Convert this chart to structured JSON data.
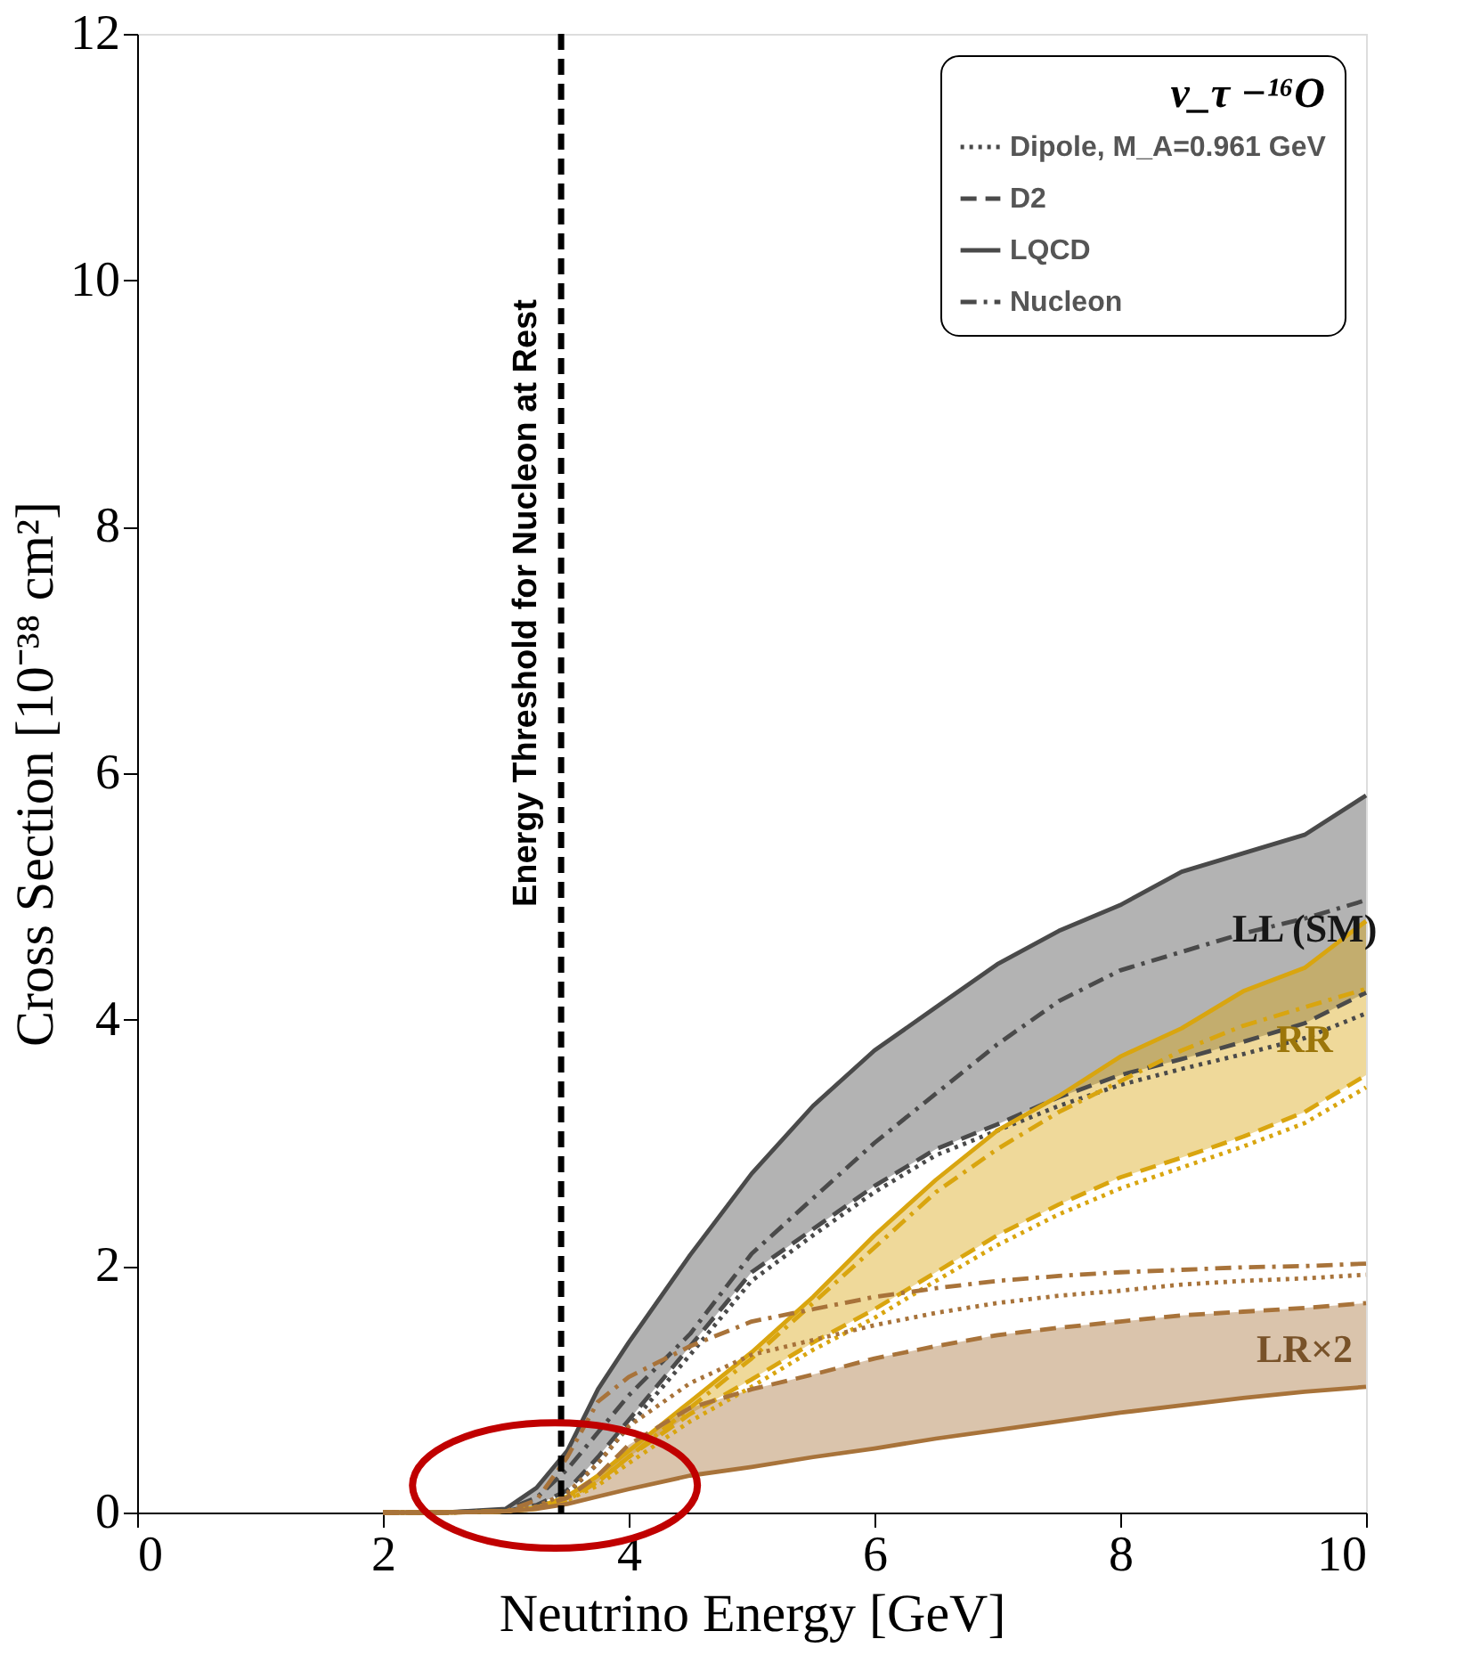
{
  "chart_data": {
    "type": "line",
    "xlabel": "Neutrino Energy [GeV]",
    "ylabel": "Cross Section  [10⁻³⁸ cm²]",
    "legend_title": "ν_τ −¹⁶O",
    "legend": "top right",
    "grid": false,
    "xlim": [
      0,
      10
    ],
    "ylim": [
      0,
      12
    ],
    "xticks": [
      0,
      2,
      4,
      6,
      8,
      10
    ],
    "yticks": [
      0,
      2,
      4,
      6,
      8,
      10,
      12
    ],
    "x": [
      2,
      2.5,
      3,
      3.25,
      3.5,
      3.75,
      4,
      4.5,
      5,
      5.5,
      6,
      6.5,
      7,
      7.5,
      8,
      8.5,
      9,
      9.5,
      10
    ],
    "series": [
      {
        "name": "Dipole, M_A=0.961 GeV",
        "color": "#4a4a4a",
        "line_style": "dotted",
        "values": [
          0,
          0,
          0.01,
          0.05,
          0.15,
          0.4,
          0.7,
          1.28,
          1.88,
          2.25,
          2.6,
          2.9,
          3.1,
          3.3,
          3.47,
          3.6,
          3.72,
          3.85,
          4.05
        ]
      },
      {
        "name": "D2",
        "color": "#4a4a4a",
        "line_style": "dashed",
        "values": [
          0,
          0,
          0.01,
          0.06,
          0.18,
          0.45,
          0.75,
          1.35,
          1.95,
          2.3,
          2.65,
          2.95,
          3.15,
          3.37,
          3.55,
          3.68,
          3.82,
          3.97,
          4.22
        ]
      },
      {
        "name": "LQCD",
        "color": "#4a4a4a",
        "line_style": "solid",
        "values": [
          0,
          0,
          0.03,
          0.2,
          0.5,
          1.0,
          1.38,
          2.09,
          2.75,
          3.3,
          3.75,
          4.1,
          4.45,
          4.72,
          4.93,
          5.2,
          5.35,
          5.5,
          5.82
        ],
        "lower": [
          0,
          0,
          0.01,
          0.06,
          0.18,
          0.45,
          0.75,
          1.35,
          1.95,
          2.3,
          2.65,
          2.95,
          3.15,
          3.37,
          3.55,
          3.68,
          3.82,
          3.97,
          4.22
        ],
        "upper": [
          0,
          0,
          0.03,
          0.2,
          0.5,
          1.0,
          1.38,
          2.09,
          2.75,
          3.3,
          3.75,
          4.1,
          4.45,
          4.72,
          4.93,
          5.2,
          5.35,
          5.5,
          5.82
        ]
      },
      {
        "name": "Nucleon",
        "color": "#4a4a4a",
        "line_style": "dashdot",
        "values": [
          0,
          0,
          0.02,
          0.12,
          0.35,
          0.65,
          0.95,
          1.45,
          2.1,
          2.55,
          3.0,
          3.4,
          3.8,
          4.15,
          4.4,
          4.55,
          4.7,
          4.82,
          4.97
        ]
      },
      {
        "color": "#d9a50f",
        "line_style": "dotted",
        "values": [
          0,
          0,
          0.01,
          0.03,
          0.1,
          0.22,
          0.4,
          0.74,
          1.02,
          1.32,
          1.58,
          1.88,
          2.17,
          2.42,
          2.63,
          2.8,
          2.97,
          3.16,
          3.45
        ]
      },
      {
        "color": "#d9a50f",
        "line_style": "dashed",
        "values": [
          0,
          0,
          0.01,
          0.04,
          0.12,
          0.25,
          0.45,
          0.8,
          1.08,
          1.38,
          1.65,
          1.95,
          2.25,
          2.5,
          2.72,
          2.88,
          3.05,
          3.25,
          3.55
        ]
      },
      {
        "color": "#d9a50f",
        "line_style": "solid",
        "values": [
          0,
          0,
          0.01,
          0.04,
          0.13,
          0.3,
          0.5,
          0.9,
          1.3,
          1.75,
          2.25,
          2.7,
          3.1,
          3.38,
          3.7,
          3.93,
          4.23,
          4.42,
          4.8
        ],
        "lower": [
          0,
          0,
          0.01,
          0.04,
          0.12,
          0.25,
          0.45,
          0.8,
          1.08,
          1.38,
          1.65,
          1.95,
          2.25,
          2.5,
          2.72,
          2.88,
          3.05,
          3.25,
          3.55
        ],
        "upper": [
          0,
          0,
          0.01,
          0.04,
          0.13,
          0.3,
          0.5,
          0.9,
          1.3,
          1.75,
          2.25,
          2.7,
          3.1,
          3.38,
          3.7,
          3.93,
          4.23,
          4.42,
          4.8
        ]
      },
      {
        "color": "#d9a50f",
        "line_style": "dashdot",
        "values": [
          0,
          0,
          0.01,
          0.03,
          0.1,
          0.25,
          0.45,
          0.85,
          1.25,
          1.7,
          2.15,
          2.6,
          2.95,
          3.25,
          3.5,
          3.75,
          3.95,
          4.1,
          4.25
        ]
      },
      {
        "color": "#a8733a",
        "line_style": "dotted",
        "values": [
          0,
          0,
          0.01,
          0.05,
          0.16,
          0.4,
          0.7,
          1.05,
          1.28,
          1.4,
          1.52,
          1.62,
          1.7,
          1.76,
          1.8,
          1.85,
          1.88,
          1.9,
          1.93
        ]
      },
      {
        "color": "#a8733a",
        "line_style": "dashed",
        "values": [
          0,
          0,
          0.01,
          0.04,
          0.12,
          0.3,
          0.55,
          0.85,
          1.0,
          1.12,
          1.25,
          1.35,
          1.44,
          1.5,
          1.55,
          1.6,
          1.63,
          1.66,
          1.7
        ]
      },
      {
        "color": "#a8733a",
        "line_style": "solid",
        "values": [
          0,
          0,
          0.01,
          0.03,
          0.07,
          0.13,
          0.19,
          0.3,
          0.37,
          0.45,
          0.52,
          0.6,
          0.67,
          0.74,
          0.81,
          0.87,
          0.93,
          0.98,
          1.02
        ],
        "lower": [
          0,
          0,
          0.01,
          0.03,
          0.07,
          0.13,
          0.19,
          0.3,
          0.37,
          0.45,
          0.52,
          0.6,
          0.67,
          0.74,
          0.81,
          0.87,
          0.93,
          0.98,
          1.02
        ],
        "upper": [
          0,
          0,
          0.01,
          0.04,
          0.12,
          0.3,
          0.55,
          0.85,
          1.0,
          1.12,
          1.25,
          1.35,
          1.44,
          1.5,
          1.55,
          1.6,
          1.63,
          1.66,
          1.7
        ]
      },
      {
        "color": "#a8733a",
        "line_style": "dashdot",
        "values": [
          0,
          0,
          0.01,
          0.1,
          0.45,
          0.9,
          1.1,
          1.35,
          1.55,
          1.65,
          1.75,
          1.82,
          1.88,
          1.92,
          1.95,
          1.97,
          1.99,
          2.0,
          2.02
        ]
      }
    ],
    "ref_lines": [
      {
        "axis": "x",
        "value": 3.45,
        "label": "Energy Threshold for Nucleon at Rest",
        "color": "#000000",
        "line_style": "dashed"
      }
    ],
    "annotations": [
      "LL (SM)",
      "RR",
      "LR×2"
    ]
  }
}
